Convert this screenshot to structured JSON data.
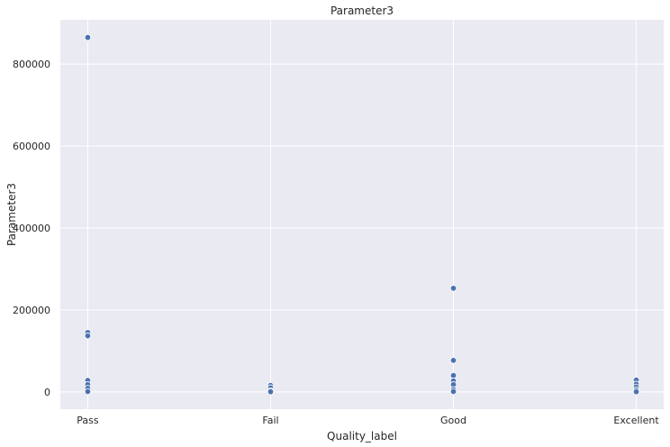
{
  "chart_data": {
    "type": "scatter",
    "title": "Parameter3",
    "xlabel": "Quality_label",
    "ylabel": "Parameter3",
    "categories": [
      "Pass",
      "Fail",
      "Good",
      "Excellent"
    ],
    "ylim": [
      -42000,
      908000
    ],
    "yticks": [
      0,
      200000,
      400000,
      600000,
      800000
    ],
    "ytick_labels": [
      "0",
      "200000",
      "400000",
      "600000",
      "800000"
    ],
    "grid": true,
    "background_color": "#eaeaf2",
    "point_color": "#4c72b0",
    "points": [
      {
        "x": "Pass",
        "y": 865000
      },
      {
        "x": "Pass",
        "y": 145000
      },
      {
        "x": "Pass",
        "y": 137000
      },
      {
        "x": "Pass",
        "y": 28000
      },
      {
        "x": "Pass",
        "y": 18000
      },
      {
        "x": "Pass",
        "y": 9000
      },
      {
        "x": "Pass",
        "y": 1000
      },
      {
        "x": "Fail",
        "y": 16000
      },
      {
        "x": "Fail",
        "y": 10000
      },
      {
        "x": "Fail",
        "y": 3000
      },
      {
        "x": "Fail",
        "y": 500
      },
      {
        "x": "Good",
        "y": 253000
      },
      {
        "x": "Good",
        "y": 77000
      },
      {
        "x": "Good",
        "y": 40000
      },
      {
        "x": "Good",
        "y": 27000
      },
      {
        "x": "Good",
        "y": 18000
      },
      {
        "x": "Good",
        "y": 6000
      },
      {
        "x": "Good",
        "y": 1000
      },
      {
        "x": "Excellent",
        "y": 29000
      },
      {
        "x": "Excellent",
        "y": 19000
      },
      {
        "x": "Excellent",
        "y": 12000
      },
      {
        "x": "Excellent",
        "y": 5000
      },
      {
        "x": "Excellent",
        "y": 500
      }
    ]
  }
}
